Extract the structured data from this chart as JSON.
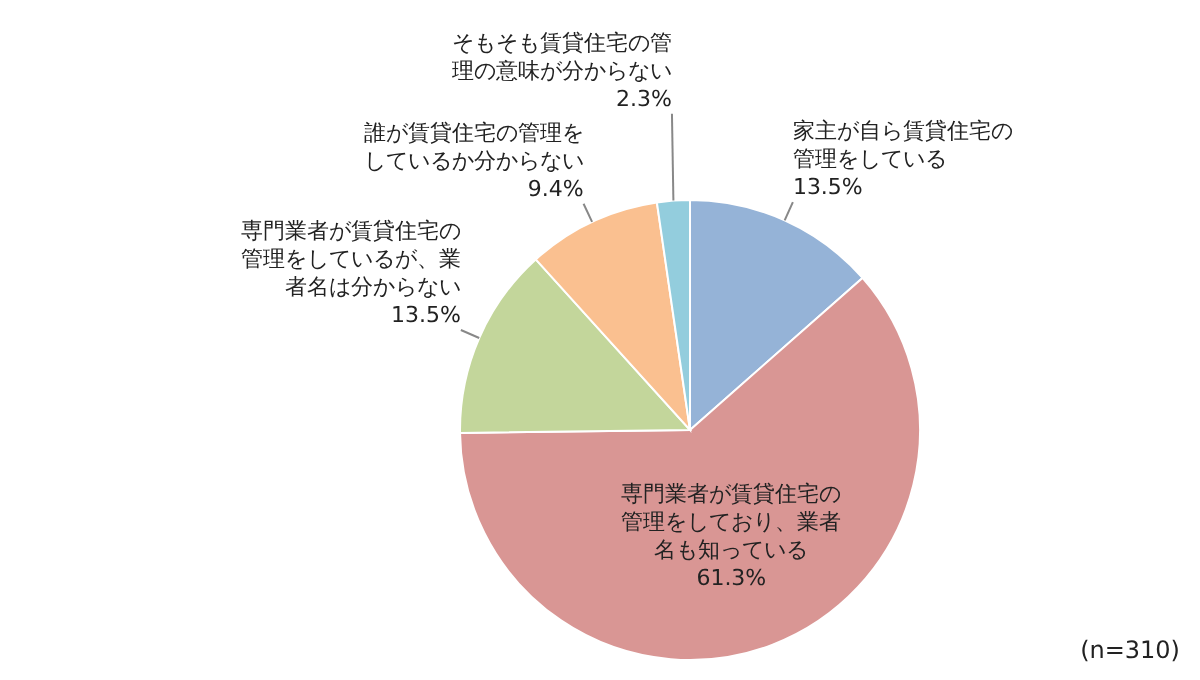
{
  "chart_data": {
    "type": "pie",
    "categories": [
      "家主が自ら賃貸住宅の管理をしている",
      "専門業者が賃貸住宅の管理をしており、業者名も知っている",
      "専門業者が賃貸住宅の管理をしているが、業者名は分からない",
      "誰が賃貸住宅の管理をしているか分からない",
      "そもそも賃貸住宅の管理の意味が分からない"
    ],
    "values": [
      13.5,
      61.3,
      13.5,
      9.4,
      2.3
    ],
    "value_labels": [
      "13.5%",
      "61.3%",
      "13.5%",
      "9.4%",
      "2.3%"
    ],
    "colors": [
      "#95b3d7",
      "#d99694",
      "#c3d69b",
      "#fac090",
      "#93cddd"
    ],
    "annotations": [
      "(n=310)"
    ]
  }
}
